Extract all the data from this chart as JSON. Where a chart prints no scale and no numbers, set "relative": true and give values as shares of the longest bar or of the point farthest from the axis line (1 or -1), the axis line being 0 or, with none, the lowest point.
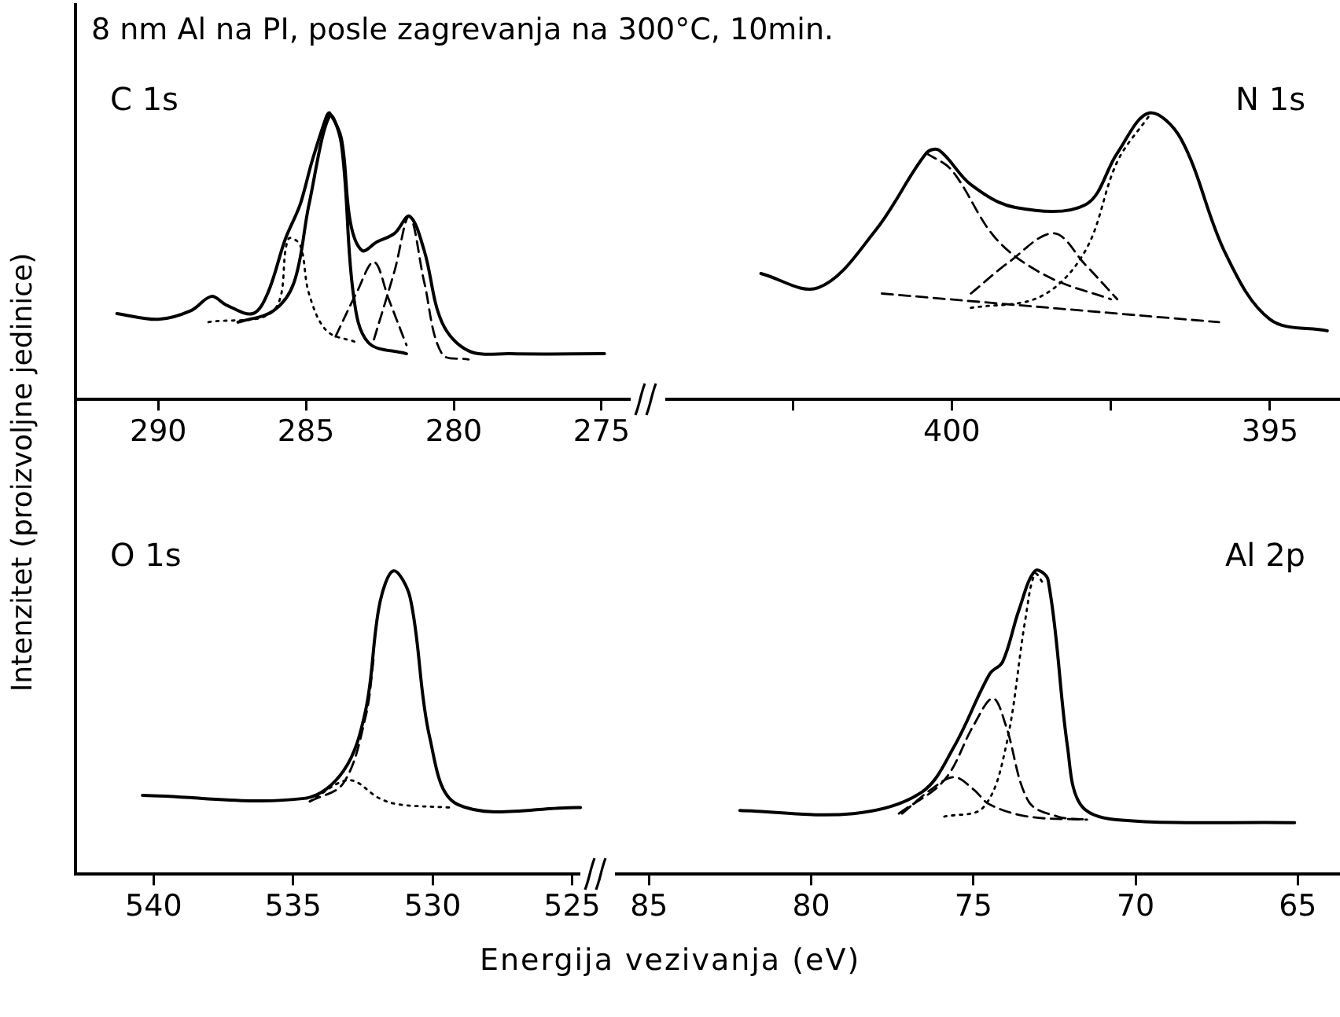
{
  "chart_data": [
    {
      "type": "line",
      "title": "8 nm Al na PI, posle zagrevanja na 300°C, 10min.",
      "ylabel": "Intenzitet (proizvoljne jedinice)",
      "relative": true,
      "legend": false,
      "grid": false,
      "annotations": [
        "C 1s"
      ],
      "xlim": [
        292.8,
        273.8
      ],
      "xticks": [
        290,
        285,
        280,
        275
      ],
      "series": [
        {
          "color": "#000000",
          "line_style": "solid",
          "x": [
            291.4,
            290.0,
            288.9,
            288.2,
            287.7,
            286.8,
            286.3,
            285.7,
            285.2,
            284.8,
            284.3,
            284.2,
            283.8,
            283.5,
            283.1,
            282.6,
            282.0,
            281.5,
            281.0,
            280.4,
            279.5,
            278.1,
            274.9
          ],
          "values": [
            0.3,
            0.28,
            0.31,
            0.36,
            0.33,
            0.3,
            0.37,
            0.56,
            0.68,
            0.83,
            0.99,
            1.0,
            0.91,
            0.62,
            0.52,
            0.55,
            0.58,
            0.64,
            0.52,
            0.27,
            0.17,
            0.16,
            0.16
          ]
        },
        {
          "color": "#000000",
          "line_style": "solid",
          "x": [
            287.3,
            286.1,
            285.4,
            284.9,
            284.2,
            283.8,
            283.4,
            282.9,
            281.6
          ],
          "values": [
            0.27,
            0.31,
            0.41,
            0.68,
            0.99,
            0.89,
            0.37,
            0.2,
            0.16
          ]
        },
        {
          "color": "#000000",
          "line_style": "dotted",
          "x": [
            288.3,
            286.1,
            285.6,
            285.2,
            284.9,
            284.3,
            283.3
          ],
          "values": [
            0.27,
            0.31,
            0.56,
            0.54,
            0.37,
            0.24,
            0.2
          ]
        },
        {
          "color": "#000000",
          "line_style": "dashed",
          "x": [
            284.0,
            283.3,
            282.7,
            282.2,
            281.6
          ],
          "values": [
            0.22,
            0.37,
            0.48,
            0.35,
            0.19
          ]
        },
        {
          "color": "#000000",
          "line_style": "dashed",
          "x": [
            282.7,
            282.0,
            281.5,
            281.0,
            280.4,
            279.5
          ],
          "values": [
            0.21,
            0.45,
            0.64,
            0.41,
            0.16,
            0.14
          ]
        }
      ]
    },
    {
      "type": "line",
      "relative": true,
      "legend": false,
      "grid": false,
      "annotations": [
        "N 1s"
      ],
      "xlim": [
        404.7,
        393.9
      ],
      "xticks": [
        {
          "value": 402.5,
          "label": null
        },
        400,
        {
          "value": 397.5,
          "label": null
        },
        395
      ],
      "series": [
        {
          "color": "#000000",
          "line_style": "solid",
          "x": [
            403.0,
            402.1,
            401.2,
            400.4,
            400.2,
            399.7,
            399.0,
            397.9,
            397.4,
            396.9,
            396.4,
            395.7,
            395.0,
            394.1
          ],
          "values": [
            0.44,
            0.39,
            0.59,
            0.86,
            0.87,
            0.75,
            0.67,
            0.68,
            0.86,
            1.0,
            0.91,
            0.51,
            0.28,
            0.24
          ]
        },
        {
          "color": "#000000",
          "line_style": "dashed",
          "x": [
            400.4,
            400.0,
            399.3,
            398.5,
            397.5
          ],
          "values": [
            0.86,
            0.8,
            0.56,
            0.43,
            0.35
          ]
        },
        {
          "color": "#000000",
          "line_style": "dashed",
          "x": [
            399.7,
            399.1,
            398.4,
            397.9,
            397.4
          ],
          "values": [
            0.37,
            0.48,
            0.58,
            0.47,
            0.35
          ]
        },
        {
          "color": "#000000",
          "line_style": "dotted",
          "x": [
            399.7,
            398.6,
            397.9,
            397.4,
            396.9
          ],
          "values": [
            0.32,
            0.36,
            0.52,
            0.83,
            0.99
          ]
        },
        {
          "color": "#000000",
          "line_style": "dashed",
          "x": [
            401.1,
            395.8
          ],
          "values": [
            0.37,
            0.27
          ]
        }
      ]
    },
    {
      "type": "line",
      "xlabel": "Energija vezivanja (eV)",
      "relative": true,
      "legend": false,
      "grid": false,
      "annotations": [
        "O 1s"
      ],
      "xlim": [
        542.8,
        524.5
      ],
      "xticks": [
        540,
        535,
        530,
        525
      ],
      "series": [
        {
          "color": "#000000",
          "line_style": "solid",
          "x": [
            540.4,
            534.6,
            533.2,
            532.4,
            531.9,
            531.4,
            530.8,
            530.1,
            529.1,
            524.7
          ],
          "values": [
            0.26,
            0.25,
            0.34,
            0.54,
            0.89,
            1.0,
            0.91,
            0.45,
            0.23,
            0.22
          ]
        },
        {
          "color": "#000000",
          "line_style": "dotted",
          "x": [
            534.4,
            533.0,
            531.9,
            531.2,
            529.4
          ],
          "values": [
            0.24,
            0.31,
            0.25,
            0.23,
            0.22
          ]
        },
        {
          "color": "#000000",
          "line_style": "dashed",
          "x": [
            534.4,
            533.2,
            532.4,
            532.1
          ],
          "values": [
            0.24,
            0.3,
            0.52,
            0.72
          ]
        }
      ]
    },
    {
      "type": "line",
      "relative": true,
      "legend": false,
      "grid": false,
      "annotations": [
        "Al 2p"
      ],
      "xlim": [
        86.1,
        63.7
      ],
      "xticks": [
        85,
        80,
        75,
        70,
        65
      ],
      "series": [
        {
          "color": "#000000",
          "line_style": "solid",
          "x": [
            82.2,
            78.7,
            76.6,
            75.6,
            74.5,
            74.1,
            73.6,
            73.1,
            72.7,
            72.1,
            71.7,
            70.6,
            65.1
          ],
          "values": [
            0.21,
            0.2,
            0.27,
            0.42,
            0.66,
            0.7,
            0.87,
            1.0,
            0.97,
            0.42,
            0.23,
            0.18,
            0.17
          ]
        },
        {
          "color": "#000000",
          "line_style": "dotted",
          "x": [
            75.9,
            74.7,
            74.0,
            73.4,
            73.1,
            72.8
          ],
          "values": [
            0.19,
            0.22,
            0.42,
            0.84,
            0.99,
            0.95
          ]
        },
        {
          "color": "#000000",
          "line_style": "dashed",
          "x": [
            77.3,
            75.9,
            75.0,
            74.4,
            74.0,
            73.3,
            72.4,
            71.5
          ],
          "values": [
            0.2,
            0.31,
            0.49,
            0.58,
            0.49,
            0.24,
            0.19,
            0.18
          ]
        },
        {
          "color": "#000000",
          "line_style": "dashed",
          "x": [
            77.2,
            76.3,
            75.6,
            75.0,
            74.5,
            73.3,
            71.5
          ],
          "values": [
            0.2,
            0.28,
            0.32,
            0.28,
            0.23,
            0.19,
            0.18
          ]
        }
      ]
    }
  ]
}
